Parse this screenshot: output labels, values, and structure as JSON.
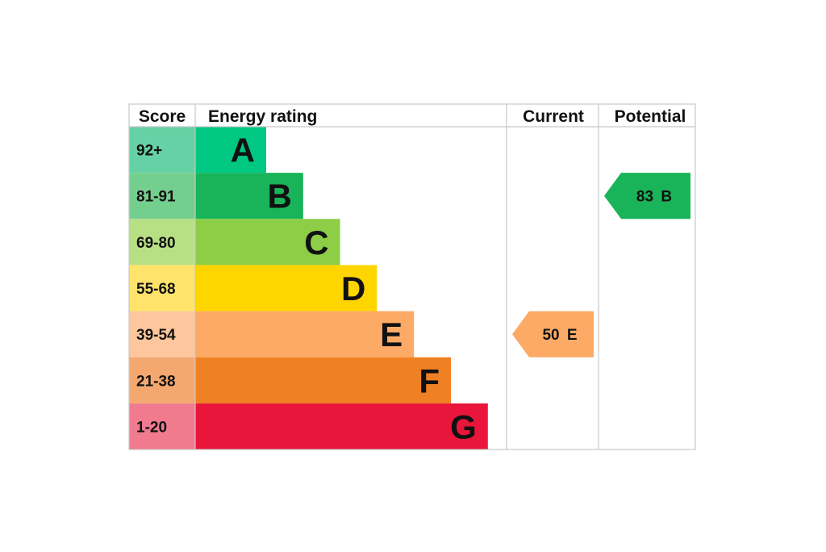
{
  "chart_data": {
    "type": "bar",
    "headers": {
      "score": "Score",
      "energy_rating": "Energy rating",
      "current": "Current",
      "potential": "Potential"
    },
    "bands": [
      {
        "letter": "A",
        "range": "92+",
        "bar_color": "#00c781",
        "score_bg": "#66d1a4"
      },
      {
        "letter": "B",
        "range": "81-91",
        "bar_color": "#19b459",
        "score_bg": "#74cf8f"
      },
      {
        "letter": "C",
        "range": "69-80",
        "bar_color": "#8dce46",
        "score_bg": "#b7e085"
      },
      {
        "letter": "D",
        "range": "55-68",
        "bar_color": "#ffd500",
        "score_bg": "#ffe36a"
      },
      {
        "letter": "E",
        "range": "39-54",
        "bar_color": "#fcaa65",
        "score_bg": "#fdc69c"
      },
      {
        "letter": "F",
        "range": "21-38",
        "bar_color": "#ef8023",
        "score_bg": "#f4a870"
      },
      {
        "letter": "G",
        "range": "1-20",
        "bar_color": "#e9153b",
        "score_bg": "#f07a8e"
      }
    ],
    "current": {
      "value": 50,
      "band": "E",
      "label": "50 E",
      "color": "#fcaa65"
    },
    "potential": {
      "value": 83,
      "band": "B",
      "label": "83 B",
      "color": "#19b459"
    }
  }
}
